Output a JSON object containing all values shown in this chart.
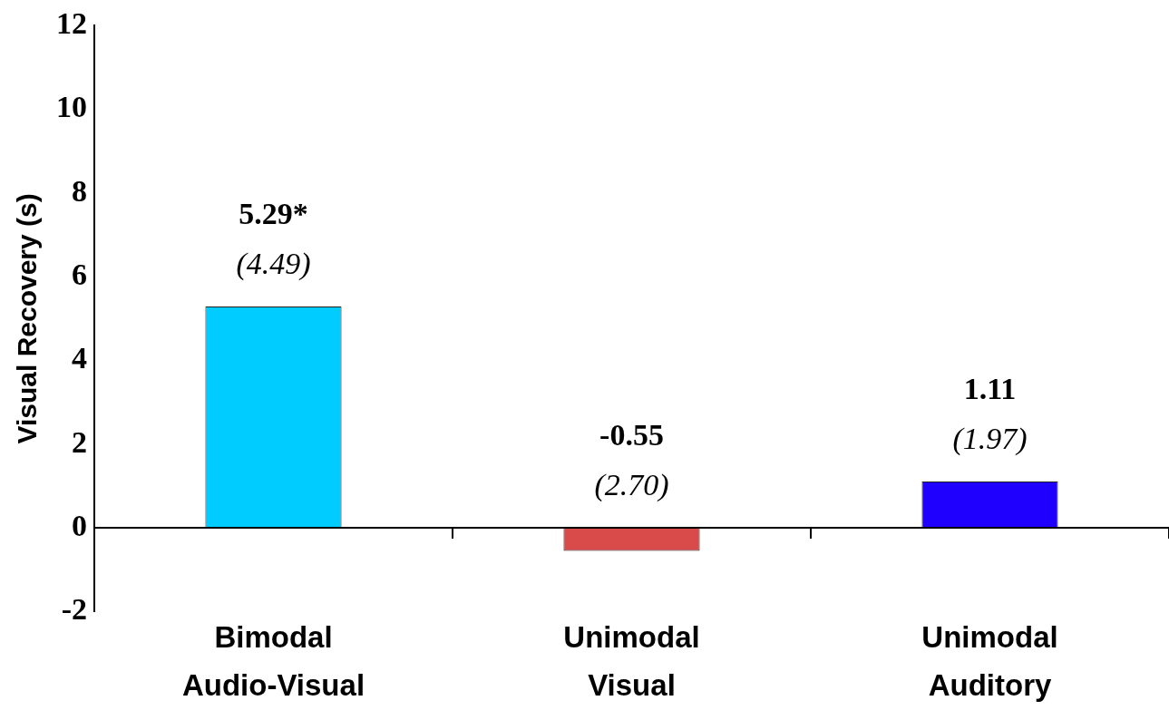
{
  "chart_data": {
    "type": "bar",
    "ylabel": "Visual Recovery (s)",
    "categories": [
      "Bimodal Audio-Visual",
      "Unimodal Visual",
      "Unimodal Auditory"
    ],
    "values": [
      5.29,
      -0.55,
      1.11
    ],
    "colors": [
      "#00ccff",
      "#d94a4a",
      "#1f00ff"
    ],
    "value_labels": [
      "5.29*",
      "-0.55",
      "1.11"
    ],
    "annotations": [
      {
        "text": "(4.49)",
        "x": "Bimodal Audio-Visual",
        "y": 5.29
      },
      {
        "text": "(2.70)",
        "x": "Unimodal Visual",
        "y": -0.55
      },
      {
        "text": "(1.97)",
        "x": "Unimodal Auditory",
        "y": 1.11
      }
    ],
    "ref_lines": [
      {
        "axis": "y",
        "value": 0,
        "color": "#000000"
      }
    ],
    "ylim": [
      -2,
      12
    ],
    "yticks": [
      -2,
      0,
      2,
      4,
      6,
      8,
      10,
      12
    ],
    "grid": false,
    "legend": false
  }
}
